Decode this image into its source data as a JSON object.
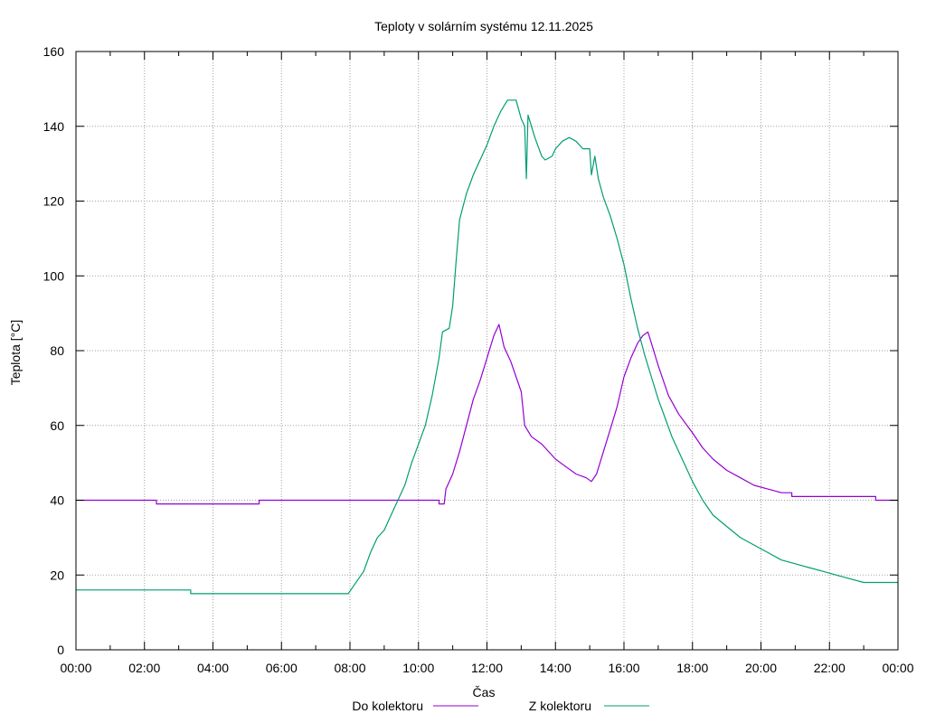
{
  "chart_data": {
    "type": "line",
    "title": "Teploty v solárním systému 12.11.2025",
    "xlabel": "Čas",
    "ylabel": "Teplota [°C]",
    "xlim": [
      0,
      24
    ],
    "ylim": [
      0,
      160
    ],
    "grid": true,
    "legend_position": "bottom-center",
    "xticks": [
      {
        "value": 0,
        "label": "00:00"
      },
      {
        "value": 2,
        "label": "02:00"
      },
      {
        "value": 4,
        "label": "04:00"
      },
      {
        "value": 6,
        "label": "06:00"
      },
      {
        "value": 8,
        "label": "08:00"
      },
      {
        "value": 10,
        "label": "10:00"
      },
      {
        "value": 12,
        "label": "12:00"
      },
      {
        "value": 14,
        "label": "14:00"
      },
      {
        "value": 16,
        "label": "16:00"
      },
      {
        "value": 18,
        "label": "18:00"
      },
      {
        "value": 20,
        "label": "20:00"
      },
      {
        "value": 22,
        "label": "22:00"
      },
      {
        "value": 24,
        "label": "00:00"
      }
    ],
    "yticks": [
      {
        "value": 0,
        "label": "0"
      },
      {
        "value": 20,
        "label": "20"
      },
      {
        "value": 40,
        "label": "40"
      },
      {
        "value": 60,
        "label": "60"
      },
      {
        "value": 80,
        "label": "80"
      },
      {
        "value": 100,
        "label": "100"
      },
      {
        "value": 120,
        "label": "120"
      },
      {
        "value": 140,
        "label": "140"
      },
      {
        "value": 160,
        "label": "160"
      }
    ],
    "series": [
      {
        "name": "Do kolektoru",
        "color": "#9400d3",
        "points": [
          [
            0,
            40
          ],
          [
            2.35,
            40
          ],
          [
            2.35,
            39
          ],
          [
            5.35,
            39
          ],
          [
            5.35,
            40
          ],
          [
            10.6,
            40
          ],
          [
            10.6,
            39
          ],
          [
            10.75,
            39
          ],
          [
            10.8,
            43
          ],
          [
            11.0,
            47
          ],
          [
            11.2,
            53
          ],
          [
            11.4,
            60
          ],
          [
            11.6,
            67
          ],
          [
            11.8,
            72
          ],
          [
            12.0,
            78
          ],
          [
            12.2,
            84
          ],
          [
            12.35,
            87
          ],
          [
            12.5,
            81
          ],
          [
            12.7,
            77
          ],
          [
            13.0,
            69
          ],
          [
            13.1,
            60
          ],
          [
            13.3,
            57
          ],
          [
            13.6,
            55
          ],
          [
            14.0,
            51
          ],
          [
            14.3,
            49
          ],
          [
            14.6,
            47
          ],
          [
            14.9,
            46
          ],
          [
            15.05,
            45
          ],
          [
            15.2,
            47
          ],
          [
            15.4,
            53
          ],
          [
            15.6,
            59
          ],
          [
            15.8,
            65
          ],
          [
            16.0,
            73
          ],
          [
            16.2,
            78
          ],
          [
            16.4,
            82
          ],
          [
            16.55,
            84
          ],
          [
            16.7,
            85
          ],
          [
            16.8,
            82
          ],
          [
            17.0,
            76
          ],
          [
            17.3,
            68
          ],
          [
            17.6,
            63
          ],
          [
            18.0,
            58
          ],
          [
            18.3,
            54
          ],
          [
            18.6,
            51
          ],
          [
            19.0,
            48
          ],
          [
            19.4,
            46
          ],
          [
            19.8,
            44
          ],
          [
            20.2,
            43
          ],
          [
            20.6,
            42
          ],
          [
            20.9,
            42
          ],
          [
            20.9,
            41
          ],
          [
            23.35,
            41
          ],
          [
            23.35,
            40
          ],
          [
            24,
            40
          ]
        ]
      },
      {
        "name": "Z kolektoru",
        "color": "#009e73",
        "points": [
          [
            0,
            16
          ],
          [
            3.35,
            16
          ],
          [
            3.35,
            15
          ],
          [
            7.95,
            15
          ],
          [
            8.1,
            17
          ],
          [
            8.4,
            21
          ],
          [
            8.6,
            26
          ],
          [
            8.8,
            30
          ],
          [
            9.0,
            32
          ],
          [
            9.2,
            36
          ],
          [
            9.4,
            40
          ],
          [
            9.6,
            44
          ],
          [
            9.8,
            50
          ],
          [
            10.0,
            55
          ],
          [
            10.2,
            60
          ],
          [
            10.4,
            68
          ],
          [
            10.6,
            78
          ],
          [
            10.7,
            85
          ],
          [
            10.9,
            86
          ],
          [
            11.0,
            92
          ],
          [
            11.1,
            104
          ],
          [
            11.2,
            115
          ],
          [
            11.4,
            122
          ],
          [
            11.6,
            127
          ],
          [
            11.8,
            131
          ],
          [
            12.0,
            135
          ],
          [
            12.2,
            140
          ],
          [
            12.4,
            144
          ],
          [
            12.6,
            147
          ],
          [
            12.85,
            147
          ],
          [
            13.0,
            142
          ],
          [
            13.1,
            140
          ],
          [
            13.15,
            126
          ],
          [
            13.2,
            143
          ],
          [
            13.4,
            137
          ],
          [
            13.6,
            132
          ],
          [
            13.7,
            131
          ],
          [
            13.9,
            132
          ],
          [
            14.0,
            134
          ],
          [
            14.2,
            136
          ],
          [
            14.4,
            137
          ],
          [
            14.6,
            136
          ],
          [
            14.8,
            134
          ],
          [
            15.0,
            134
          ],
          [
            15.05,
            127
          ],
          [
            15.15,
            132
          ],
          [
            15.25,
            126
          ],
          [
            15.4,
            121
          ],
          [
            15.6,
            116
          ],
          [
            15.8,
            110
          ],
          [
            16.0,
            103
          ],
          [
            16.2,
            94
          ],
          [
            16.4,
            86
          ],
          [
            16.6,
            79
          ],
          [
            16.8,
            73
          ],
          [
            17.0,
            67
          ],
          [
            17.2,
            62
          ],
          [
            17.4,
            57
          ],
          [
            17.6,
            53
          ],
          [
            17.8,
            49
          ],
          [
            18.0,
            45
          ],
          [
            18.3,
            40
          ],
          [
            18.6,
            36
          ],
          [
            19.0,
            33
          ],
          [
            19.4,
            30
          ],
          [
            19.8,
            28
          ],
          [
            20.2,
            26
          ],
          [
            20.6,
            24
          ],
          [
            21.0,
            23
          ],
          [
            21.4,
            22
          ],
          [
            21.8,
            21
          ],
          [
            22.2,
            20
          ],
          [
            22.6,
            19
          ],
          [
            23.0,
            18
          ],
          [
            24.0,
            18
          ]
        ]
      }
    ]
  }
}
